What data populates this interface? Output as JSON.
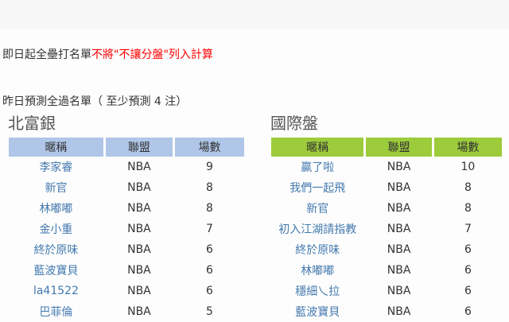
{
  "notice": {
    "plain": "即日起全壘打名單",
    "highlight": "不將\"不讓分盤\"列入計算"
  },
  "subtitle": "昨日預測全過名單（ 至少預測 4 注）",
  "colors": {
    "link": "#4379ae",
    "notice_highlight": "#ff0000",
    "bank_header": "#b0c6e8",
    "intl_header": "#9ccb3b"
  },
  "tables": [
    {
      "title": "北富銀",
      "header_color": "#b0c6e8",
      "columns": [
        "暱稱",
        "聯盟",
        "場數"
      ],
      "rows": [
        {
          "nickname": "李家睿",
          "league": "NBA",
          "games": "9"
        },
        {
          "nickname": "新官",
          "league": "NBA",
          "games": "8"
        },
        {
          "nickname": "林嘟嘟",
          "league": "NBA",
          "games": "8"
        },
        {
          "nickname": "金小重",
          "league": "NBA",
          "games": "7"
        },
        {
          "nickname": "終於原味",
          "league": "NBA",
          "games": "6"
        },
        {
          "nickname": "藍波寶貝",
          "league": "NBA",
          "games": "6"
        },
        {
          "nickname": "la41522",
          "league": "NBA",
          "games": "6"
        },
        {
          "nickname": "巴菲倫",
          "league": "NBA",
          "games": "5"
        }
      ]
    },
    {
      "title": "國際盤",
      "header_color": "#9ccb3b",
      "columns": [
        "暱稱",
        "聯盟",
        "場數"
      ],
      "rows": [
        {
          "nickname": "贏了啦",
          "league": "NBA",
          "games": "10"
        },
        {
          "nickname": "我們一起飛",
          "league": "NBA",
          "games": "8"
        },
        {
          "nickname": "新官",
          "league": "NBA",
          "games": "8"
        },
        {
          "nickname": "初入江湖請指教",
          "league": "NBA",
          "games": "7"
        },
        {
          "nickname": "終於原味",
          "league": "NBA",
          "games": "6"
        },
        {
          "nickname": "林嘟嘟",
          "league": "NBA",
          "games": "6"
        },
        {
          "nickname": "穩細乀拉",
          "league": "NBA",
          "games": "6"
        },
        {
          "nickname": "藍波寶貝",
          "league": "NBA",
          "games": "6"
        }
      ]
    }
  ]
}
